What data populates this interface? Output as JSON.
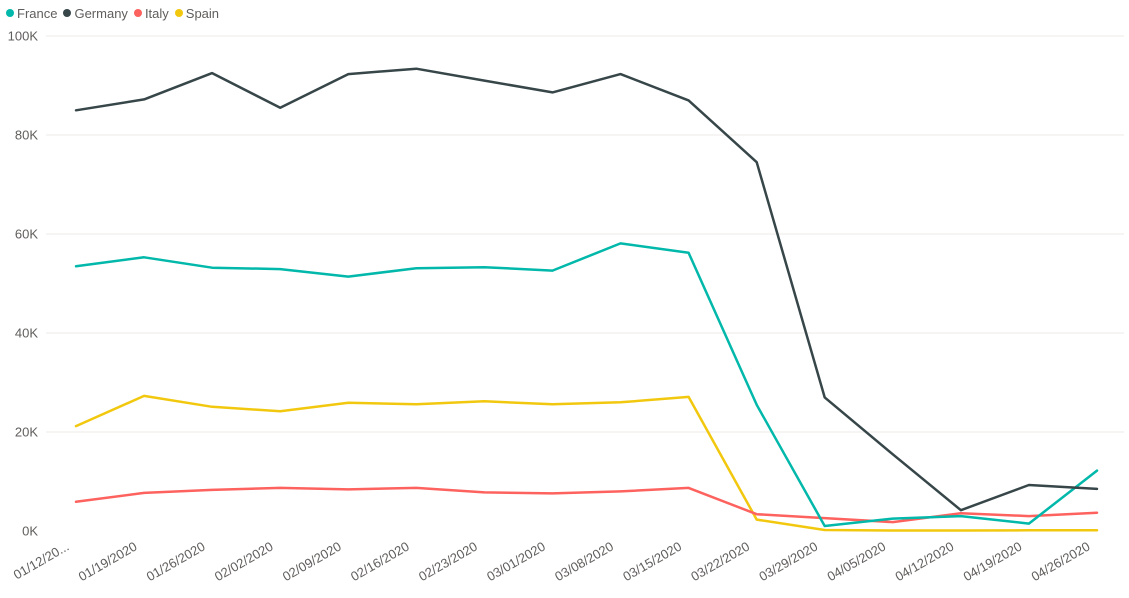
{
  "chart_data": {
    "type": "line",
    "title": "",
    "xlabel": "",
    "ylabel": "",
    "legend_position": "top-left",
    "grid": true,
    "ylim": [
      0,
      100000
    ],
    "yticks": [
      0,
      20000,
      40000,
      60000,
      80000,
      100000
    ],
    "ytick_labels": [
      "0K",
      "20K",
      "40K",
      "60K",
      "80K",
      "100K"
    ],
    "categories": [
      "01/12/20...",
      "01/19/2020",
      "01/26/2020",
      "02/02/2020",
      "02/09/2020",
      "02/16/2020",
      "02/23/2020",
      "03/01/2020",
      "03/08/2020",
      "03/15/2020",
      "03/22/2020",
      "03/29/2020",
      "04/05/2020",
      "04/12/2020",
      "04/19/2020",
      "04/26/2020"
    ],
    "series": [
      {
        "name": "France",
        "color": "#01B8AA",
        "values": [
          53500,
          55300,
          53200,
          52900,
          51400,
          53100,
          53300,
          52600,
          58100,
          56200,
          25500,
          1000,
          2500,
          3000,
          1500,
          12200
        ]
      },
      {
        "name": "Germany",
        "color": "#374649",
        "values": [
          85000,
          87200,
          92500,
          85500,
          92300,
          93400,
          91000,
          88600,
          92300,
          87000,
          74500,
          27000,
          15500,
          4200,
          9300,
          8500
        ]
      },
      {
        "name": "Italy",
        "color": "#FD625E",
        "values": [
          5900,
          7700,
          8300,
          8700,
          8400,
          8700,
          7800,
          7600,
          8000,
          8700,
          3400,
          2600,
          1800,
          3600,
          3000,
          3700
        ]
      },
      {
        "name": "Spain",
        "color": "#F2C80F",
        "values": [
          21200,
          27300,
          25100,
          24200,
          25900,
          25600,
          26200,
          25600,
          26000,
          27100,
          2300,
          200,
          100,
          100,
          150,
          150
        ]
      }
    ]
  }
}
